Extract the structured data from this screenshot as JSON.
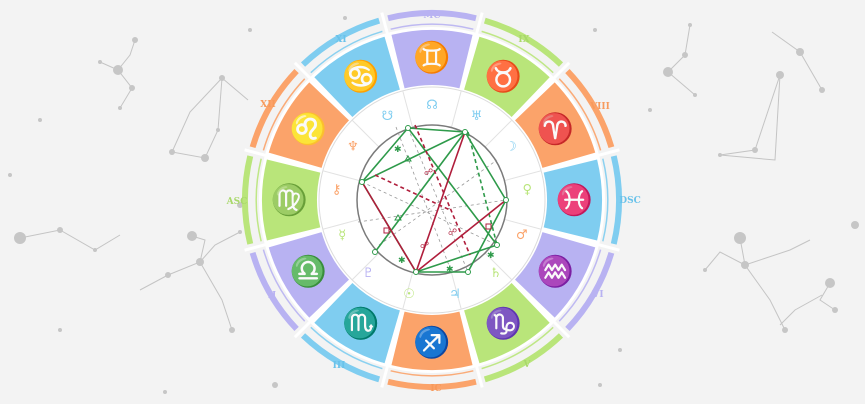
{
  "houses": {
    "mc": "MC",
    "ix": "IX",
    "viii": "VIII",
    "dsc": "DSC",
    "vi": "VI",
    "v": "V",
    "ic": "IC",
    "iii": "III",
    "ii": "II",
    "asc": "ASC",
    "xii": "XII",
    "xi": "XI"
  },
  "colors": {
    "orange": "#fba36a",
    "green": "#b9e57a",
    "blue": "#7fcdf0",
    "purple": "#b8b2f2",
    "aspect_green": "#2e9a4a",
    "aspect_red": "#b01e3c"
  },
  "zodiac_segments": [
    {
      "icon": "gemini-icon",
      "color": "purple"
    },
    {
      "icon": "taurus-icon",
      "color": "green"
    },
    {
      "icon": "aries-icon",
      "color": "orange"
    },
    {
      "icon": "pisces-icon",
      "color": "blue"
    },
    {
      "icon": "aquarius-icon",
      "color": "purple"
    },
    {
      "icon": "capricorn-icon",
      "color": "green"
    },
    {
      "icon": "sagittarius-icon",
      "color": "orange"
    },
    {
      "icon": "scorpio-icon",
      "color": "blue"
    },
    {
      "icon": "libra-icon",
      "color": "purple"
    },
    {
      "icon": "virgo-icon",
      "color": "green"
    },
    {
      "icon": "leo-icon",
      "color": "orange"
    },
    {
      "icon": "cancer-icon",
      "color": "blue"
    }
  ],
  "planets": [
    {
      "icon": "north-node-icon",
      "color": "blue"
    },
    {
      "icon": "uranus-icon",
      "color": "blue"
    },
    {
      "icon": "moon-icon",
      "color": "blue"
    },
    {
      "icon": "venus-icon",
      "color": "green"
    },
    {
      "icon": "mars-icon",
      "color": "orange"
    },
    {
      "icon": "saturn-icon",
      "color": "green"
    },
    {
      "icon": "jupiter-icon",
      "color": "blue"
    },
    {
      "icon": "sun-icon",
      "color": "green"
    },
    {
      "icon": "pluto-icon",
      "color": "purple"
    },
    {
      "icon": "mercury-icon",
      "color": "green"
    },
    {
      "icon": "chiron-icon",
      "color": "orange"
    },
    {
      "icon": "neptune-icon",
      "color": "orange"
    },
    {
      "icon": "south-node-icon",
      "color": "blue"
    }
  ]
}
